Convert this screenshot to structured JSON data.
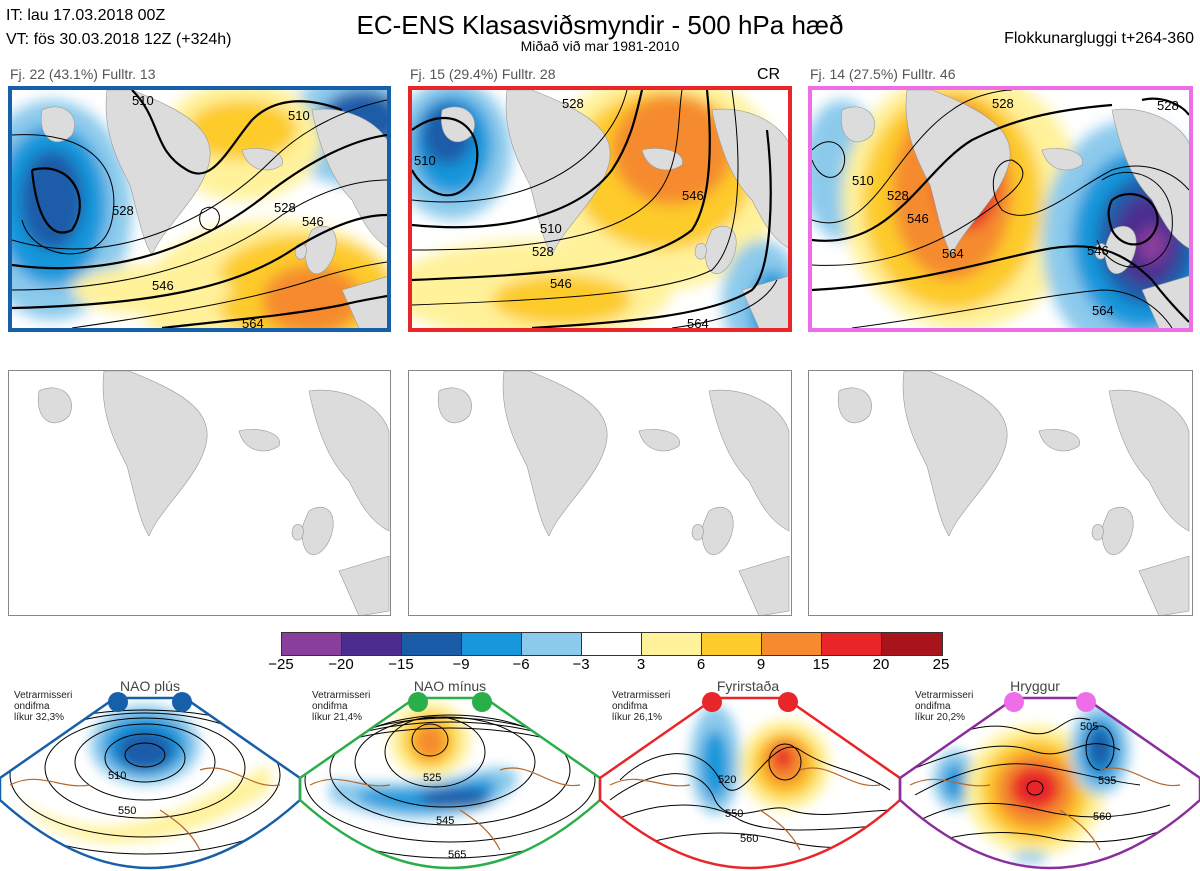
{
  "header": {
    "init_time": "IT: lau 17.03.2018 00Z",
    "valid_time": "VT: fös 30.03.2018 12Z  (+324h)",
    "title": "EC-ENS Klasasviðsmyndir - 500 hPa hæð",
    "subtitle": "Miðað við mar 1981-2010",
    "window": "Flokkunargluggi t+264-360"
  },
  "panels": [
    {
      "label": "Fj. 22 (43.1%)   Fulltr. 13",
      "border_color": "#1560a8",
      "tag": "",
      "contour_labels": [
        "510",
        "528",
        "546",
        "564",
        "510",
        "528",
        "546",
        "564"
      ]
    },
    {
      "label": "Fj. 15 (29.4%)   Fulltr. 28",
      "border_color": "#e8262a",
      "tag": "CR",
      "contour_labels": [
        "528",
        "510",
        "528",
        "546",
        "546",
        "564",
        "510"
      ]
    },
    {
      "label": "Fj. 14 (27.5%)   Fulltr. 46",
      "border_color": "#ee6ee8",
      "tag": "",
      "contour_labels": [
        "528",
        "510",
        "528",
        "546",
        "564",
        "528",
        "564",
        "546"
      ]
    }
  ],
  "colorbar": {
    "colors": [
      "#8a3e9c",
      "#4b2d8f",
      "#1a5ca8",
      "#1897dc",
      "#8ccaec",
      "#ffffff",
      "#fff29b",
      "#fdcb2c",
      "#f58b2d",
      "#e8262a",
      "#a9141c"
    ],
    "ticks": [
      "−25",
      "−20",
      "−15",
      "−9",
      "−6",
      "−3",
      "3",
      "6",
      "9",
      "15",
      "20",
      "25"
    ]
  },
  "regimes": [
    {
      "name": "NAO plús",
      "note": [
        "Vetrarmisseri",
        "ondifma",
        "líkur 32,3%"
      ],
      "color": "#1560a8",
      "labels": [
        "510",
        "550"
      ]
    },
    {
      "name": "NAO mínus",
      "note": [
        "Vetrarmisseri",
        "ondifma",
        "líkur 21,4%"
      ],
      "color": "#2aae4a",
      "labels": [
        "525",
        "545",
        "565"
      ]
    },
    {
      "name": "Fyrirstaða",
      "note": [
        "Vetrarmisseri",
        "ondifma",
        "líkur 26,1%"
      ],
      "color": "#e8262a",
      "labels": [
        "520",
        "550",
        "560"
      ]
    },
    {
      "name": "Hryggur",
      "note": [
        "Vetrarmisseri",
        "ondifma",
        "líkur 20,2%"
      ],
      "color": "#ee6ee8",
      "labels": [
        "505",
        "535",
        "560"
      ]
    }
  ]
}
